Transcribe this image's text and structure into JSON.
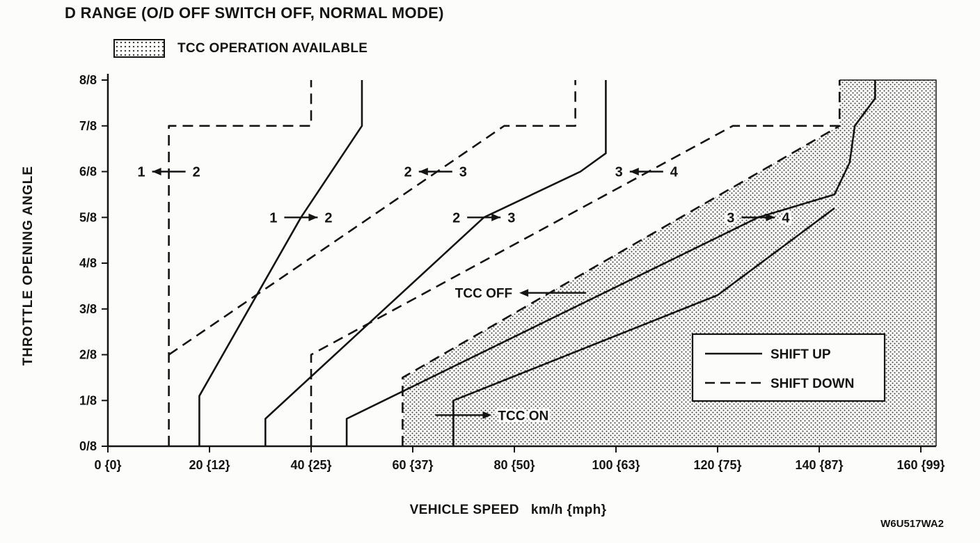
{
  "page": {
    "title": "D RANGE (O/D OFF SWITCH OFF, NORMAL MODE)",
    "watermark": "W6U517WA2"
  },
  "tcc_legend": {
    "label": "TCC OPERATION AVAILABLE"
  },
  "legend": {
    "items": [
      {
        "style": "solid",
        "label": "SHIFT UP"
      },
      {
        "style": "dashed",
        "label": "SHIFT DOWN"
      }
    ]
  },
  "axes": {
    "x_title": "VEHICLE SPEED   km/h {mph}",
    "y_title": "THROTTLE OPENING ANGLE"
  },
  "chart_data": {
    "type": "line",
    "title": "D RANGE (O/D OFF SWITCH OFF, NORMAL MODE)",
    "xlabel": "VEHICLE SPEED km/h {mph}",
    "ylabel": "THROTTLE OPENING ANGLE",
    "xlim": [
      0,
      163
    ],
    "ylim": [
      0,
      8
    ],
    "grid": false,
    "legend_entries": [
      "SHIFT UP",
      "SHIFT DOWN"
    ],
    "x_ticks": [
      {
        "value": 0,
        "label": "0 {0}"
      },
      {
        "value": 20,
        "label": "20 {12}"
      },
      {
        "value": 40,
        "label": "40 {25}"
      },
      {
        "value": 60,
        "label": "60 {37}"
      },
      {
        "value": 80,
        "label": "80 {50}"
      },
      {
        "value": 100,
        "label": "100 {63}"
      },
      {
        "value": 120,
        "label": "120 {75}"
      },
      {
        "value": 140,
        "label": "140 {87}"
      },
      {
        "value": 160,
        "label": "160 {99}"
      }
    ],
    "y_ticks": [
      {
        "value": 0,
        "label": "0/8"
      },
      {
        "value": 1,
        "label": "1/8"
      },
      {
        "value": 2,
        "label": "2/8"
      },
      {
        "value": 3,
        "label": "3/8"
      },
      {
        "value": 4,
        "label": "4/8"
      },
      {
        "value": 5,
        "label": "5/8"
      },
      {
        "value": 6,
        "label": "6/8"
      },
      {
        "value": 7,
        "label": "7/8"
      },
      {
        "value": 8,
        "label": "8/8"
      }
    ],
    "series": [
      {
        "name": "shift-up-1-2",
        "legend": "SHIFT UP",
        "style": "solid",
        "points": [
          [
            18,
            0
          ],
          [
            18,
            1.1
          ],
          [
            38,
            5
          ],
          [
            50,
            7
          ],
          [
            50,
            8
          ]
        ]
      },
      {
        "name": "shift-up-2-3",
        "legend": "SHIFT UP",
        "style": "solid",
        "points": [
          [
            31,
            0
          ],
          [
            31,
            0.6
          ],
          [
            74,
            5
          ],
          [
            93,
            6
          ],
          [
            98,
            6.4
          ],
          [
            98,
            8
          ]
        ]
      },
      {
        "name": "shift-up-3-4",
        "legend": "SHIFT UP",
        "style": "solid",
        "points": [
          [
            47,
            0
          ],
          [
            47,
            0.6
          ],
          [
            128,
            5
          ],
          [
            143,
            5.5
          ],
          [
            146,
            6.2
          ],
          [
            147,
            7
          ],
          [
            151,
            7.6
          ],
          [
            151,
            8
          ]
        ]
      },
      {
        "name": "tcc-on-line",
        "legend": "SHIFT UP",
        "style": "solid",
        "points": [
          [
            68,
            0
          ],
          [
            68,
            1
          ],
          [
            120,
            3.3
          ],
          [
            143,
            5.2
          ]
        ]
      },
      {
        "name": "shift-down-2-1",
        "legend": "SHIFT DOWN",
        "style": "dashed",
        "points": [
          [
            12,
            0
          ],
          [
            12,
            7
          ],
          [
            40,
            7
          ],
          [
            40,
            8
          ]
        ]
      },
      {
        "name": "shift-down-3-2",
        "legend": "SHIFT DOWN",
        "style": "dashed",
        "points": [
          [
            12,
            2
          ],
          [
            78,
            7
          ],
          [
            92,
            7
          ],
          [
            92,
            8
          ]
        ]
      },
      {
        "name": "shift-down-4-3",
        "legend": "SHIFT DOWN",
        "style": "dashed",
        "points": [
          [
            40,
            0
          ],
          [
            40,
            2
          ],
          [
            123,
            7
          ],
          [
            144,
            7
          ],
          [
            144,
            8
          ]
        ]
      },
      {
        "name": "tcc-off-line",
        "legend": "SHIFT DOWN",
        "style": "dashed",
        "points": [
          [
            58,
            0
          ],
          [
            58,
            1.5
          ],
          [
            144,
            7
          ]
        ]
      }
    ],
    "region": {
      "label": "TCC OPERATION AVAILABLE",
      "polygon": [
        [
          58,
          0
        ],
        [
          58,
          1.5
        ],
        [
          144,
          7
        ],
        [
          144,
          8
        ],
        [
          163,
          8
        ],
        [
          163,
          0
        ]
      ],
      "border": [
        [
          144,
          8
        ],
        [
          163,
          8
        ],
        [
          163,
          0
        ]
      ]
    },
    "annotations": [
      {
        "kind": "shift",
        "text_left": "1",
        "text_right": "2",
        "arrow": "left",
        "x": 12,
        "y": 6
      },
      {
        "kind": "shift",
        "text_left": "1",
        "text_right": "2",
        "arrow": "right",
        "x": 38,
        "y": 5
      },
      {
        "kind": "shift",
        "text_left": "2",
        "text_right": "3",
        "arrow": "left",
        "x": 64.5,
        "y": 6
      },
      {
        "kind": "shift",
        "text_left": "2",
        "text_right": "3",
        "arrow": "right",
        "x": 74,
        "y": 5
      },
      {
        "kind": "shift",
        "text_left": "3",
        "text_right": "4",
        "arrow": "left",
        "x": 106,
        "y": 6
      },
      {
        "kind": "shift",
        "text_left": "3",
        "text_right": "4",
        "arrow": "right",
        "x": 128,
        "y": 5
      },
      {
        "kind": "label",
        "text": "TCC OFF",
        "arrow": "left",
        "x": 87,
        "y": 3.35
      },
      {
        "kind": "label",
        "text": "TCC ON",
        "arrow": "right",
        "x": 68,
        "y": 0.68
      }
    ]
  }
}
